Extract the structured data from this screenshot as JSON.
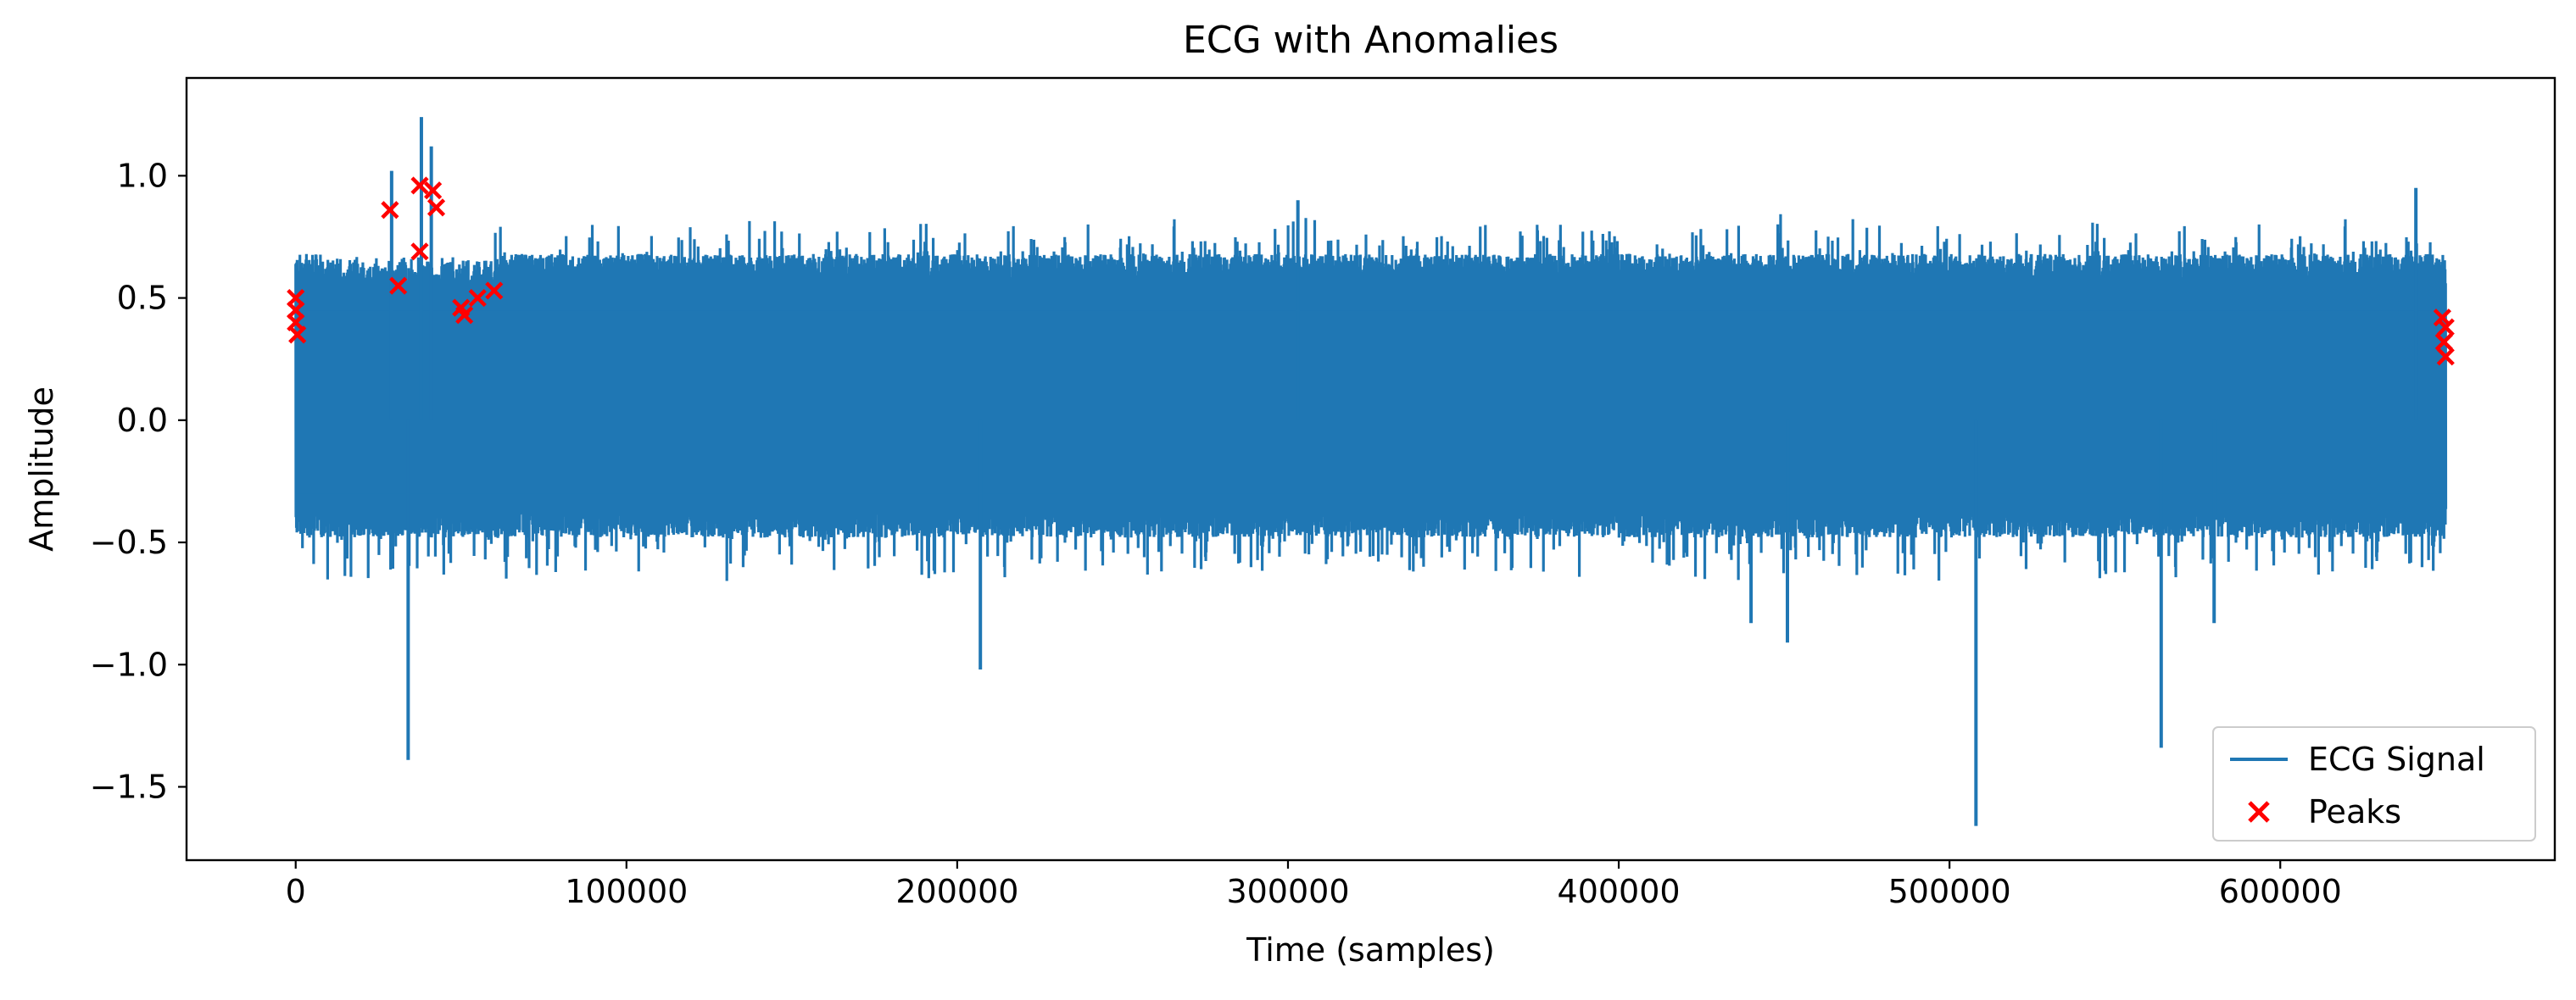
{
  "chart_data": {
    "type": "line",
    "title": "ECG with Anomalies",
    "xlabel": "Time (samples)",
    "ylabel": "Amplitude",
    "xlim": [
      -33000,
      683000
    ],
    "ylim": [
      -1.8,
      1.4
    ],
    "xticks": [
      0,
      100000,
      200000,
      300000,
      400000,
      500000,
      600000
    ],
    "xtick_labels": [
      "0",
      "100000",
      "200000",
      "300000",
      "400000",
      "500000",
      "600000"
    ],
    "yticks": [
      1.0,
      0.5,
      0.0,
      -0.5,
      -1.0,
      -1.5
    ],
    "ytick_labels": [
      "1.0",
      "0.5",
      "0.0",
      "−0.5",
      "−1.0",
      "−1.5"
    ],
    "grid": false,
    "legend_position": "lower-right",
    "legend": [
      {
        "label": "ECG Signal",
        "marker": "line",
        "color": "#1f77b4"
      },
      {
        "label": "Peaks",
        "marker": "x",
        "color": "#ff0000"
      }
    ],
    "series": [
      {
        "name": "ECG Signal",
        "color": "#1f77b4",
        "x_range": [
          0,
          650000
        ],
        "band": {
          "typical_max": 0.68,
          "typical_min": -0.48,
          "envelope_max": 0.85,
          "envelope_min": -0.68
        },
        "early_segment": {
          "x_end": 60000,
          "lower_max": 0.55
        },
        "spikes": [
          {
            "x": 29000,
            "y": 1.02
          },
          {
            "x": 38000,
            "y": 1.24
          },
          {
            "x": 41000,
            "y": 1.12
          },
          {
            "x": 34000,
            "y": -1.39
          },
          {
            "x": 207000,
            "y": -1.02
          },
          {
            "x": 508000,
            "y": -1.66
          },
          {
            "x": 564000,
            "y": -1.34
          },
          {
            "x": 303000,
            "y": 0.9
          },
          {
            "x": 641000,
            "y": 0.95
          },
          {
            "x": 451000,
            "y": -0.91
          },
          {
            "x": 440000,
            "y": -0.83
          },
          {
            "x": 580000,
            "y": -0.83
          }
        ]
      },
      {
        "name": "Peaks",
        "color": "#ff0000",
        "type": "scatter",
        "marker": "x",
        "points": [
          {
            "x": 0,
            "y": 0.5
          },
          {
            "x": 0,
            "y": 0.45
          },
          {
            "x": 0,
            "y": 0.4
          },
          {
            "x": 500,
            "y": 0.35
          },
          {
            "x": 28500,
            "y": 0.86
          },
          {
            "x": 31000,
            "y": 0.55
          },
          {
            "x": 37500,
            "y": 0.96
          },
          {
            "x": 37500,
            "y": 0.69
          },
          {
            "x": 41500,
            "y": 0.94
          },
          {
            "x": 42500,
            "y": 0.87
          },
          {
            "x": 50000,
            "y": 0.46
          },
          {
            "x": 51000,
            "y": 0.43
          },
          {
            "x": 55000,
            "y": 0.5
          },
          {
            "x": 60000,
            "y": 0.53
          },
          {
            "x": 649000,
            "y": 0.42
          },
          {
            "x": 650000,
            "y": 0.38
          },
          {
            "x": 649500,
            "y": 0.32
          },
          {
            "x": 650000,
            "y": 0.26
          }
        ]
      }
    ]
  }
}
